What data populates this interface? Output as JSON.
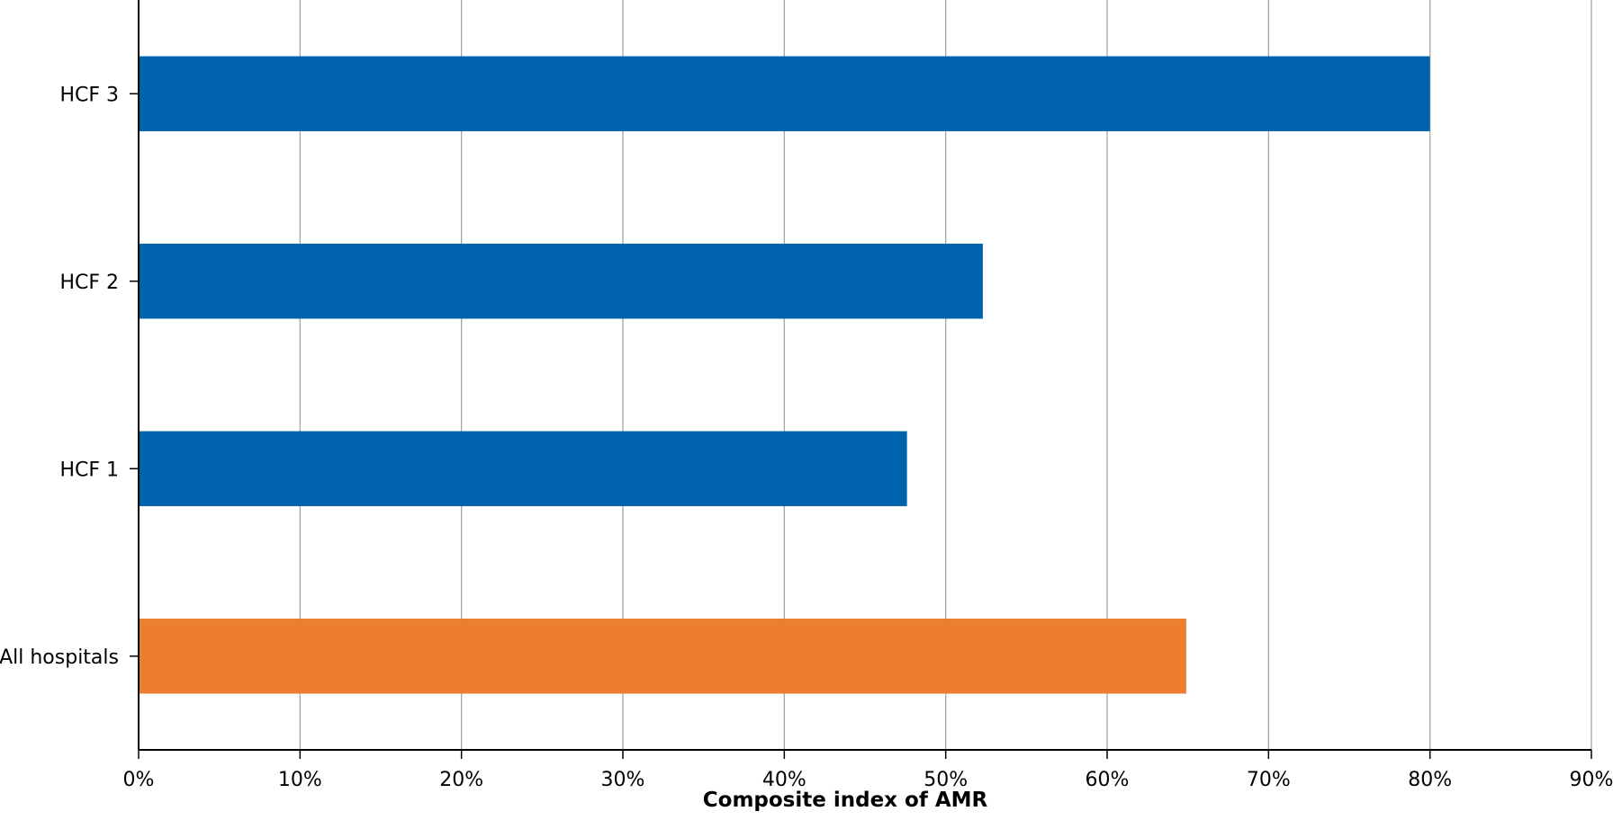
{
  "chart_data": {
    "type": "bar",
    "orientation": "horizontal",
    "categories": [
      "HCF 3",
      "HCF 2",
      "HCF 1",
      "All hospitals"
    ],
    "values": [
      80,
      52.3,
      47.6,
      64.9
    ],
    "colors": [
      "#0063ad",
      "#0063ad",
      "#0063ad",
      "#ed7d31"
    ],
    "xlabel": "Composite index of AMR",
    "ylabel": "",
    "xlim": [
      0,
      90
    ],
    "x_ticks": [
      "0%",
      "10%",
      "20%",
      "30%",
      "40%",
      "50%",
      "60%",
      "70%",
      "80%",
      "90%"
    ],
    "grid": "vertical",
    "legend": "none"
  }
}
